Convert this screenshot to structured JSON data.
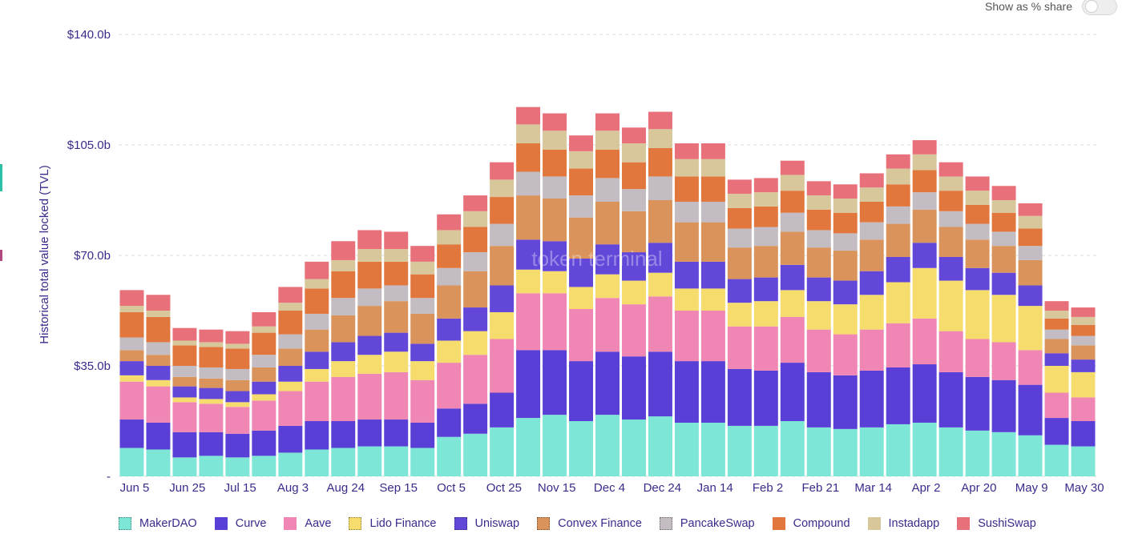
{
  "toggle": {
    "label": "Show as % share",
    "on": false
  },
  "watermark": "token terminal",
  "colors": {
    "axis_text": "#3b2a8c",
    "grid": "#dddddd"
  },
  "legend": [
    {
      "name": "MakerDAO",
      "color": "#7ee6d6",
      "pattern": "dotted"
    },
    {
      "name": "Curve",
      "color": "#5a3fd6",
      "pattern": "solid"
    },
    {
      "name": "Aave",
      "color": "#ef86b4",
      "pattern": "solid"
    },
    {
      "name": "Lido Finance",
      "color": "#f5dc6c",
      "pattern": "dotted"
    },
    {
      "name": "Uniswap",
      "color": "#6347d9",
      "pattern": "dotted"
    },
    {
      "name": "Convex Finance",
      "color": "#d9935b",
      "pattern": "dotted"
    },
    {
      "name": "PancakeSwap",
      "color": "#c3bcc2",
      "pattern": "dotted"
    },
    {
      "name": "Compound",
      "color": "#e2773e",
      "pattern": "solid"
    },
    {
      "name": "Instadapp",
      "color": "#d8c79a",
      "pattern": "solid"
    },
    {
      "name": "SushiSwap",
      "color": "#e8707a",
      "pattern": "solid"
    }
  ],
  "chart_data": {
    "type": "area",
    "stacked": true,
    "ylabel": "Historical total value locked (TVL)",
    "yticks": [
      "-",
      "$35.0b",
      "$70.0b",
      "$105.0b",
      "$140.0b"
    ],
    "ylim": [
      0,
      140
    ],
    "y_unit": "billions USD",
    "grid": true,
    "legend_position": "bottom",
    "x_ticks": [
      "Jun 5",
      "Jun 25",
      "Jul 15",
      "Aug 3",
      "Aug 24",
      "Sep 15",
      "Oct 5",
      "Oct 25",
      "Nov 15",
      "Dec 4",
      "Dec 24",
      "Jan 14",
      "Feb 2",
      "Feb 21",
      "Mar 14",
      "Apr 2",
      "Apr 20",
      "May 9",
      "May 30"
    ],
    "series_order": [
      "MakerDAO",
      "Curve",
      "Aave",
      "Lido Finance",
      "Uniswap",
      "Convex Finance",
      "PancakeSwap",
      "Compound",
      "Instadapp",
      "SushiSwap"
    ],
    "dates": [
      "Jun 5",
      "Jun 15",
      "Jun 25",
      "Jul 5",
      "Jul 15",
      "Jul 24",
      "Aug 3",
      "Aug 14",
      "Aug 24",
      "Sep 4",
      "Sep 15",
      "Sep 25",
      "Oct 5",
      "Oct 15",
      "Oct 25",
      "Nov 5",
      "Nov 15",
      "Nov 25",
      "Dec 4",
      "Dec 14",
      "Dec 24",
      "Jan 4",
      "Jan 14",
      "Jan 24",
      "Feb 2",
      "Feb 12",
      "Feb 21",
      "Mar 3",
      "Mar 14",
      "Mar 24",
      "Apr 2",
      "Apr 11",
      "Apr 20",
      "Apr 30",
      "May 9",
      "May 20",
      "May 30"
    ],
    "series": [
      {
        "name": "MakerDAO",
        "values": [
          9.0,
          8.5,
          6.0,
          6.5,
          6.0,
          6.5,
          7.5,
          8.5,
          9.0,
          9.5,
          9.5,
          9.0,
          12.5,
          13.5,
          15.5,
          18.5,
          19.5,
          17.5,
          19.5,
          18.0,
          19.0,
          17.0,
          17.0,
          16.0,
          16.0,
          17.5,
          15.5,
          15.0,
          15.5,
          16.5,
          17.0,
          15.5,
          14.5,
          14.0,
          13.0,
          10.0,
          9.5
        ]
      },
      {
        "name": "Curve",
        "values": [
          9.0,
          8.5,
          8.0,
          7.5,
          7.5,
          8.0,
          8.5,
          9.0,
          8.5,
          8.5,
          8.5,
          8.0,
          9.0,
          9.5,
          11.0,
          21.5,
          20.5,
          19.0,
          20.0,
          20.0,
          20.5,
          19.5,
          19.5,
          18.0,
          17.5,
          18.5,
          17.5,
          17.0,
          18.0,
          18.0,
          18.5,
          17.5,
          17.0,
          16.5,
          16.0,
          8.5,
          8.0
        ]
      },
      {
        "name": "Aave",
        "values": [
          12.0,
          11.5,
          9.5,
          9.0,
          8.5,
          9.5,
          11.0,
          12.5,
          14.0,
          14.5,
          15.0,
          13.5,
          14.5,
          15.5,
          17.0,
          18.0,
          18.0,
          16.5,
          17.0,
          16.5,
          17.5,
          16.0,
          16.0,
          13.5,
          14.0,
          14.5,
          13.5,
          13.0,
          13.0,
          14.0,
          14.5,
          13.0,
          12.0,
          12.0,
          11.0,
          8.0,
          7.5
        ]
      },
      {
        "name": "Lido Finance",
        "values": [
          2.0,
          2.0,
          1.5,
          1.5,
          1.5,
          2.0,
          3.0,
          4.0,
          5.0,
          6.0,
          6.5,
          6.0,
          7.0,
          7.5,
          8.5,
          7.5,
          7.0,
          7.0,
          7.5,
          7.5,
          7.5,
          7.0,
          7.0,
          7.5,
          8.0,
          8.5,
          9.0,
          9.5,
          11.0,
          13.0,
          16.0,
          16.0,
          15.5,
          15.0,
          14.0,
          8.5,
          8.0
        ]
      },
      {
        "name": "Uniswap",
        "values": [
          4.5,
          4.5,
          3.5,
          3.5,
          3.5,
          4.0,
          5.0,
          5.5,
          6.0,
          6.0,
          6.0,
          5.5,
          7.0,
          7.5,
          8.5,
          9.5,
          9.5,
          9.0,
          9.5,
          9.0,
          9.5,
          8.5,
          8.5,
          7.5,
          7.5,
          8.0,
          7.5,
          7.5,
          7.5,
          8.0,
          8.0,
          7.5,
          7.0,
          7.0,
          6.5,
          4.0,
          4.0
        ]
      },
      {
        "name": "Convex Finance",
        "values": [
          3.5,
          3.5,
          3.0,
          3.0,
          3.5,
          4.5,
          5.5,
          7.0,
          8.5,
          9.5,
          10.0,
          9.5,
          10.5,
          11.5,
          12.5,
          14.0,
          13.5,
          13.0,
          13.5,
          13.0,
          13.5,
          12.5,
          12.5,
          10.0,
          10.0,
          10.5,
          9.5,
          9.5,
          10.0,
          10.5,
          10.5,
          9.5,
          9.0,
          8.5,
          8.0,
          4.5,
          4.5
        ]
      },
      {
        "name": "PancakeSwap",
        "values": [
          4.0,
          4.0,
          3.5,
          3.5,
          3.5,
          4.0,
          4.5,
          5.0,
          5.5,
          5.5,
          5.0,
          5.0,
          5.5,
          6.0,
          7.0,
          7.5,
          7.0,
          7.0,
          7.5,
          7.0,
          7.5,
          6.5,
          6.5,
          6.0,
          6.0,
          6.0,
          5.5,
          5.5,
          5.5,
          5.5,
          5.5,
          5.0,
          5.0,
          4.5,
          4.5,
          3.0,
          3.0
        ]
      },
      {
        "name": "Compound",
        "values": [
          8.0,
          8.0,
          6.5,
          6.5,
          6.5,
          7.0,
          7.5,
          8.0,
          8.5,
          8.5,
          7.5,
          7.5,
          7.5,
          8.0,
          8.5,
          9.0,
          8.5,
          8.5,
          9.0,
          8.5,
          9.0,
          8.0,
          8.0,
          6.5,
          6.5,
          7.0,
          6.5,
          6.5,
          6.5,
          7.0,
          7.0,
          6.5,
          6.0,
          6.0,
          5.5,
          3.5,
          3.5
        ]
      },
      {
        "name": "Instadapp",
        "values": [
          2.0,
          2.0,
          1.5,
          1.5,
          1.5,
          2.0,
          2.5,
          3.0,
          3.5,
          4.0,
          4.0,
          4.0,
          4.5,
          5.0,
          5.5,
          6.0,
          6.0,
          5.5,
          6.0,
          6.0,
          6.0,
          5.5,
          5.5,
          4.5,
          4.5,
          5.0,
          4.5,
          4.5,
          4.5,
          5.0,
          5.0,
          4.5,
          4.5,
          4.0,
          4.0,
          2.5,
          2.5
        ]
      },
      {
        "name": "SushiSwap",
        "values": [
          5.0,
          5.0,
          4.0,
          4.0,
          4.0,
          4.5,
          5.0,
          5.5,
          6.0,
          6.0,
          5.5,
          5.0,
          5.0,
          5.0,
          5.5,
          5.5,
          5.5,
          5.0,
          5.5,
          5.0,
          5.5,
          5.0,
          5.0,
          4.5,
          4.5,
          4.5,
          4.5,
          4.5,
          4.5,
          4.5,
          4.5,
          4.5,
          4.5,
          4.5,
          4.0,
          3.0,
          3.0
        ]
      }
    ]
  }
}
